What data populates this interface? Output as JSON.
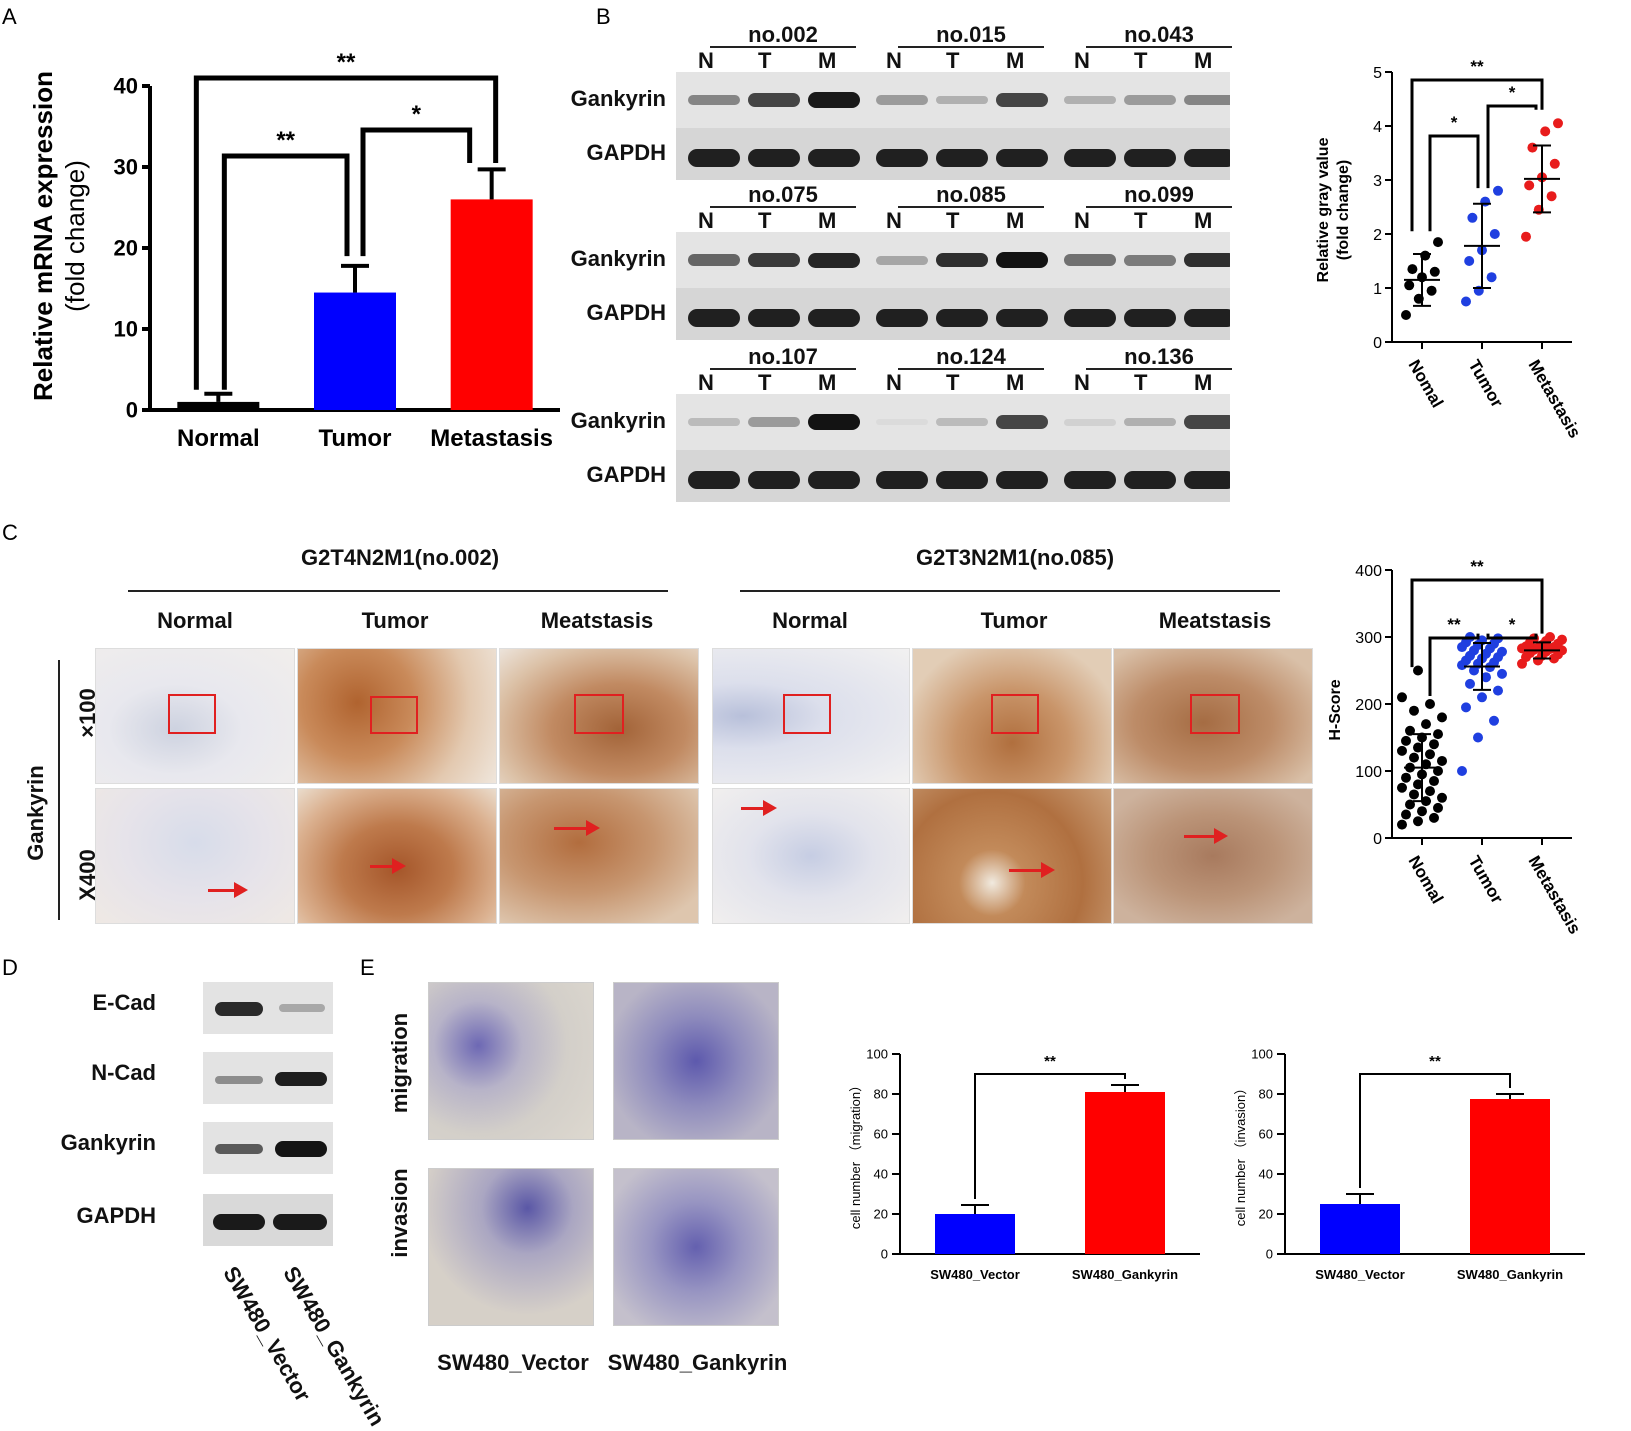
{
  "panels": {
    "a": "A",
    "b": "B",
    "c": "C",
    "d": "D",
    "e": "E"
  },
  "panel_a": {
    "ylabel_main": "Relative mRNA expression",
    "ylabel_sub": "(fold change)",
    "sig": [
      "**",
      "**",
      "*"
    ]
  },
  "panel_b": {
    "samples": [
      "no.002",
      "no.015",
      "no.043",
      "no.075",
      "no.085",
      "no.099",
      "no.107",
      "no.124",
      "no.136"
    ],
    "lanes": [
      "N",
      "T",
      "M"
    ],
    "proteins": [
      "Gankyrin",
      "GAPDH"
    ],
    "sig": [
      "**",
      "*",
      "*"
    ]
  },
  "panel_c": {
    "case1": "G2T4N2M1(no.002)",
    "case2": "G2T3N2M1(no.085)",
    "cols": [
      "Normal",
      "Tumor",
      "Meatstasis",
      "Normal",
      "Tumor",
      "Meatstasis"
    ],
    "stain": "Gankyrin",
    "mag1": "×100",
    "mag2": "X400",
    "sig": [
      "**",
      "**",
      "*"
    ]
  },
  "panel_d": {
    "proteins": [
      "E-Cad",
      "N-Cad",
      "Gankyrin",
      "GAPDH"
    ],
    "lanes": [
      "SW480_Vector",
      "SW480_Gankyrin"
    ]
  },
  "panel_e": {
    "rows": [
      "migration",
      "invasion"
    ],
    "cols": [
      "SW480_Vector",
      "SW480_Gankyrin"
    ],
    "sig": "**"
  },
  "chart_data": [
    {
      "id": "A",
      "type": "bar",
      "categories": [
        "Normal",
        "Tumor",
        "Metastasis"
      ],
      "values": [
        1,
        14.5,
        26
      ],
      "errors": [
        1,
        3.3,
        3.7
      ],
      "colors": [
        "#000000",
        "#0000ff",
        "#ff0000"
      ],
      "ylabel": "Relative mRNA expression (fold change)",
      "ylim": [
        0,
        40
      ],
      "yticks": [
        0,
        10,
        20,
        30,
        40
      ],
      "significance": [
        {
          "pair": [
            "Normal",
            "Metastasis"
          ],
          "label": "**"
        },
        {
          "pair": [
            "Normal",
            "Tumor"
          ],
          "label": "**"
        },
        {
          "pair": [
            "Tumor",
            "Metastasis"
          ],
          "label": "*"
        }
      ]
    },
    {
      "id": "B",
      "type": "scatter",
      "categories": [
        "Nomal",
        "Tumor",
        "Metastasis"
      ],
      "colors": [
        "#000000",
        "#1f3fe0",
        "#e81c1c"
      ],
      "ylabel": "Relative gray value (fold change)",
      "ylim": [
        0,
        5
      ],
      "yticks": [
        0,
        1,
        2,
        3,
        4,
        5
      ],
      "means": [
        1.15,
        1.78,
        3.02
      ],
      "sd": [
        0.48,
        0.78,
        0.62
      ],
      "points": [
        [
          0.5,
          0.8,
          0.95,
          1.05,
          1.2,
          1.3,
          1.35,
          1.6,
          1.85
        ],
        [
          0.75,
          0.95,
          1.2,
          1.5,
          1.7,
          2.0,
          2.3,
          2.6,
          2.8
        ],
        [
          1.95,
          2.45,
          2.7,
          2.9,
          3.05,
          3.3,
          3.6,
          3.9,
          4.05
        ]
      ],
      "significance": [
        {
          "pair": [
            "Nomal",
            "Metastasis"
          ],
          "label": "**"
        },
        {
          "pair": [
            "Nomal",
            "Tumor"
          ],
          "label": "*"
        },
        {
          "pair": [
            "Tumor",
            "Metastasis"
          ],
          "label": "*"
        }
      ]
    },
    {
      "id": "C",
      "type": "scatter",
      "categories": [
        "Nomal",
        "Tumor",
        "Metastasis"
      ],
      "colors": [
        "#000000",
        "#1f3fe0",
        "#e81c1c"
      ],
      "ylabel": "H-Score",
      "ylim": [
        0,
        400
      ],
      "yticks": [
        0,
        100,
        200,
        300,
        400
      ],
      "means": [
        105,
        256,
        280
      ],
      "sd": [
        50,
        35,
        12
      ],
      "points": [
        [
          20,
          25,
          30,
          35,
          40,
          45,
          50,
          55,
          60,
          65,
          70,
          75,
          80,
          85,
          90,
          95,
          100,
          105,
          110,
          115,
          120,
          125,
          130,
          135,
          140,
          145,
          150,
          155,
          160,
          170,
          180,
          190,
          200,
          210,
          250
        ],
        [
          100,
          150,
          175,
          195,
          210,
          220,
          230,
          240,
          245,
          250,
          255,
          258,
          260,
          262,
          265,
          268,
          270,
          272,
          275,
          278,
          280,
          283,
          285,
          288,
          290,
          292,
          295,
          298,
          300
        ],
        [
          260,
          265,
          268,
          270,
          272,
          274,
          276,
          278,
          280,
          281,
          282,
          283,
          284,
          285,
          286,
          288,
          290,
          292,
          294,
          296,
          298,
          300
        ]
      ],
      "significance": [
        {
          "pair": [
            "Nomal",
            "Metastasis"
          ],
          "label": "**"
        },
        {
          "pair": [
            "Nomal",
            "Tumor"
          ],
          "label": "**"
        },
        {
          "pair": [
            "Tumor",
            "Metastasis"
          ],
          "label": "*"
        }
      ]
    },
    {
      "id": "E-migration",
      "type": "bar",
      "categories": [
        "SW480_Vector",
        "SW480_Gankyrin"
      ],
      "values": [
        20,
        81
      ],
      "errors": [
        4.5,
        3.5
      ],
      "colors": [
        "#0000ff",
        "#ff0000"
      ],
      "ylabel": "cell number （migration）",
      "ylim": [
        0,
        100
      ],
      "yticks": [
        0,
        20,
        40,
        60,
        80,
        100
      ],
      "significance": [
        {
          "pair": [
            "SW480_Vector",
            "SW480_Gankyrin"
          ],
          "label": "**"
        }
      ]
    },
    {
      "id": "E-invasion",
      "type": "bar",
      "categories": [
        "SW480_Vector",
        "SW480_Gankyrin"
      ],
      "values": [
        25,
        77.5
      ],
      "errors": [
        5,
        2.5
      ],
      "colors": [
        "#0000ff",
        "#ff0000"
      ],
      "ylabel": "cell number （invasion）",
      "ylim": [
        0,
        100
      ],
      "yticks": [
        0,
        20,
        40,
        60,
        80,
        100
      ],
      "significance": [
        {
          "pair": [
            "SW480_Vector",
            "SW480_Gankyrin"
          ],
          "label": "**"
        }
      ]
    }
  ]
}
